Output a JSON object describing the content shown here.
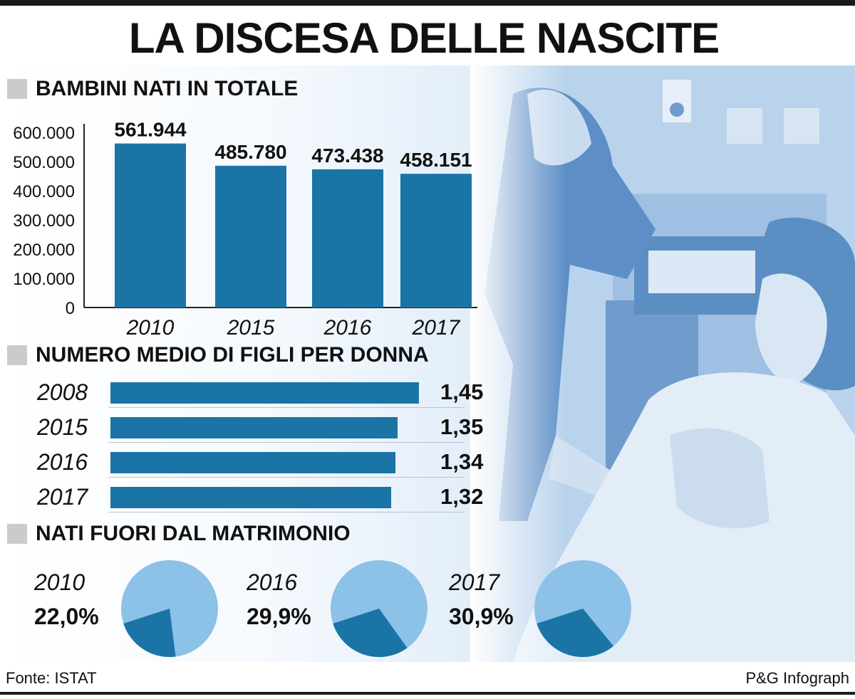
{
  "title": "LA DISCESA DELLE NASCITE",
  "colors": {
    "bar": "#1b74a6",
    "pie_share": "#1b74a6",
    "pie_rest": "#8cc1e8",
    "photo_tone": "#5b8fc4"
  },
  "sections": {
    "births": "BAMBINI NATI IN TOTALE",
    "fertility": "NUMERO MEDIO DI FIGLI PER DONNA",
    "outside_marriage": "NATI FUORI DAL MATRIMONIO"
  },
  "chart_data": [
    {
      "type": "bar",
      "title": "BAMBINI NATI IN TOTALE",
      "categories": [
        "2010",
        "2015",
        "2016",
        "2017"
      ],
      "values": [
        561944,
        485780,
        473438,
        458151
      ],
      "value_labels": [
        "561.944",
        "485.780",
        "473.438",
        "458.151"
      ],
      "y_ticks": [
        0,
        100000,
        200000,
        300000,
        400000,
        500000,
        600000
      ],
      "y_tick_labels": [
        "0",
        "100.000",
        "200.000",
        "300.000",
        "400.000",
        "500.000",
        "600.000"
      ],
      "ylim": [
        0,
        600000
      ],
      "grid": false
    },
    {
      "type": "bar",
      "orientation": "horizontal",
      "title": "NUMERO MEDIO DI FIGLI PER DONNA",
      "categories": [
        "2008",
        "2015",
        "2016",
        "2017"
      ],
      "values": [
        1.45,
        1.35,
        1.34,
        1.32
      ],
      "value_labels": [
        "1,45",
        "1,35",
        "1,34",
        "1,32"
      ]
    },
    {
      "type": "pie",
      "title": "NATI FUORI DAL MATRIMONIO",
      "charts": [
        {
          "label": "2010",
          "value": 22.0,
          "value_label": "22,0%"
        },
        {
          "label": "2016",
          "value": 29.9,
          "value_label": "29,9%"
        },
        {
          "label": "2017",
          "value": 30.9,
          "value_label": "30,9%"
        }
      ]
    }
  ],
  "footer": {
    "source": "Fonte: ISTAT",
    "credit": "P&G Infograph"
  }
}
